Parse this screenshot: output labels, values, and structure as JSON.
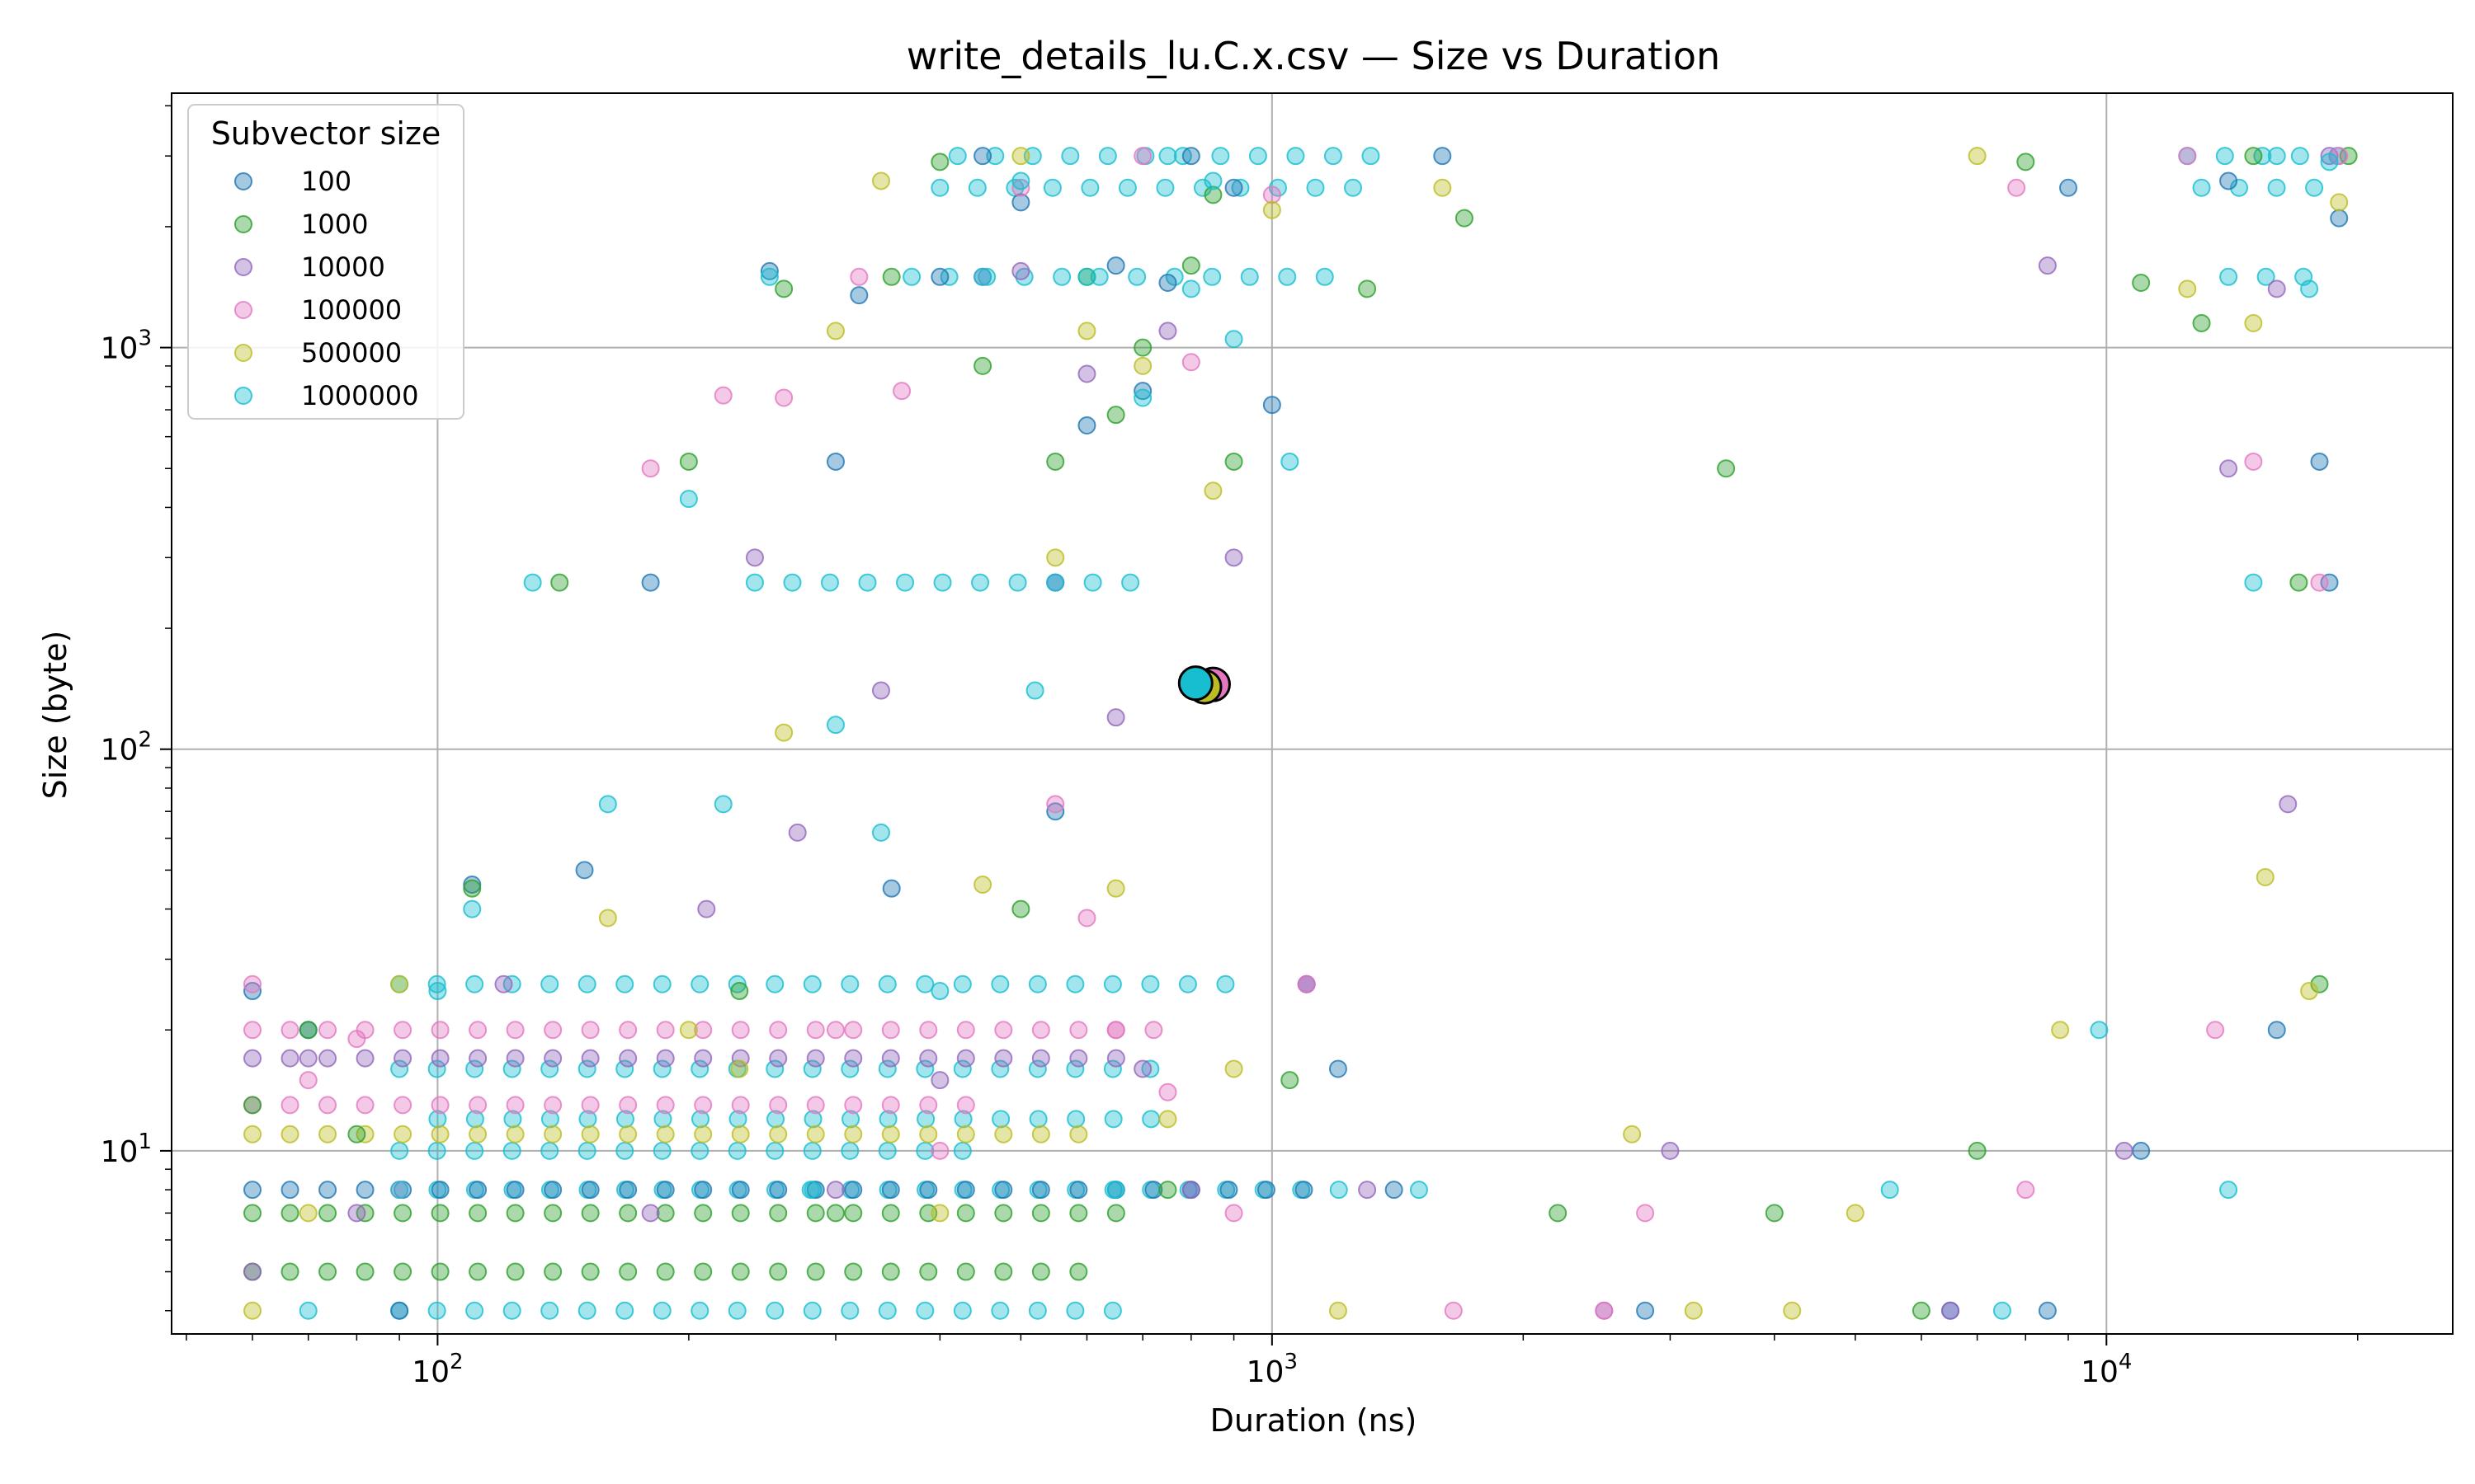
{
  "chart_data": {
    "type": "scatter",
    "title": "write_details_lu.C.x.csv — Size vs Duration",
    "xlabel": "Duration (ns)",
    "ylabel": "Size (byte)",
    "xscale": "log",
    "yscale": "log",
    "xlim": [
      48,
      26000
    ],
    "ylim": [
      3.5,
      4300
    ],
    "x_ticks": [
      {
        "value": 100,
        "base": "10",
        "exp": "2"
      },
      {
        "value": 1000,
        "base": "10",
        "exp": "3"
      },
      {
        "value": 10000,
        "base": "10",
        "exp": "4"
      }
    ],
    "y_ticks": [
      {
        "value": 10,
        "base": "10",
        "exp": "1"
      },
      {
        "value": 100,
        "base": "10",
        "exp": "2"
      },
      {
        "value": 1000,
        "base": "10",
        "exp": "3"
      }
    ],
    "grid": true,
    "legend": {
      "title": "Subvector size",
      "position": "top-left"
    },
    "series": [
      {
        "name": "100",
        "color": "#1f77b4",
        "points": [
          [
            60,
            25
          ],
          [
            70,
            20
          ],
          [
            90,
            4
          ],
          [
            110,
            46
          ],
          [
            150,
            50
          ],
          [
            180,
            260
          ],
          [
            250,
            1550
          ],
          [
            300,
            520
          ],
          [
            320,
            1350
          ],
          [
            350,
            45
          ],
          [
            400,
            1500
          ],
          [
            450,
            3000
          ],
          [
            500,
            2300
          ],
          [
            550,
            70
          ],
          [
            600,
            640
          ],
          [
            650,
            1600
          ],
          [
            700,
            780
          ],
          [
            750,
            1450
          ],
          [
            800,
            3000
          ],
          [
            900,
            2500
          ],
          [
            1000,
            720
          ],
          [
            1100,
            26
          ],
          [
            1200,
            16
          ],
          [
            1400,
            8
          ],
          [
            1600,
            3000
          ],
          [
            2800,
            4
          ],
          [
            6500,
            4
          ],
          [
            8500,
            4
          ],
          [
            9000,
            2500
          ],
          [
            11000,
            10
          ],
          [
            14000,
            2600
          ],
          [
            16000,
            20
          ],
          [
            18000,
            520
          ],
          [
            18500,
            260
          ],
          [
            19000,
            2100
          ]
        ]
      },
      {
        "name": "1000",
        "color": "#2ca02c",
        "points": [
          [
            60,
            13
          ],
          [
            70,
            20
          ],
          [
            80,
            11
          ],
          [
            110,
            45
          ],
          [
            140,
            260
          ],
          [
            200,
            520
          ],
          [
            230,
            25
          ],
          [
            260,
            1400
          ],
          [
            300,
            7
          ],
          [
            350,
            1500
          ],
          [
            400,
            2900
          ],
          [
            450,
            900
          ],
          [
            500,
            40
          ],
          [
            550,
            520
          ],
          [
            600,
            1500
          ],
          [
            650,
            680
          ],
          [
            700,
            1000
          ],
          [
            750,
            8
          ],
          [
            800,
            1600
          ],
          [
            850,
            2400
          ],
          [
            900,
            520
          ],
          [
            1050,
            15
          ],
          [
            1300,
            1400
          ],
          [
            1700,
            2100
          ],
          [
            2200,
            7
          ],
          [
            3500,
            500
          ],
          [
            4000,
            7
          ],
          [
            6000,
            4
          ],
          [
            7000,
            10
          ],
          [
            8000,
            2900
          ],
          [
            11000,
            1450
          ],
          [
            13000,
            1150
          ],
          [
            15000,
            3000
          ],
          [
            17000,
            260
          ],
          [
            18000,
            26
          ],
          [
            19500,
            3000
          ]
        ]
      },
      {
        "name": "10000",
        "color": "#9467bd",
        "points": [
          [
            60,
            5
          ],
          [
            70,
            17
          ],
          [
            80,
            7
          ],
          [
            120,
            26
          ],
          [
            180,
            7
          ],
          [
            210,
            40
          ],
          [
            240,
            300
          ],
          [
            270,
            62
          ],
          [
            300,
            8
          ],
          [
            340,
            140
          ],
          [
            400,
            15
          ],
          [
            450,
            1500
          ],
          [
            500,
            1550
          ],
          [
            550,
            260
          ],
          [
            600,
            860
          ],
          [
            650,
            120
          ],
          [
            700,
            16
          ],
          [
            750,
            1100
          ],
          [
            800,
            8
          ],
          [
            900,
            300
          ],
          [
            1100,
            26
          ],
          [
            1300,
            8
          ],
          [
            2500,
            4
          ],
          [
            3000,
            10
          ],
          [
            6500,
            4
          ],
          [
            8500,
            1600
          ],
          [
            10500,
            10
          ],
          [
            14000,
            500
          ],
          [
            16000,
            1400
          ],
          [
            16500,
            73
          ],
          [
            18500,
            3000
          ]
        ]
      },
      {
        "name": "100000",
        "color": "#e377c2",
        "points": [
          [
            60,
            26
          ],
          [
            70,
            15
          ],
          [
            80,
            19
          ],
          [
            90,
            8
          ],
          [
            180,
            500
          ],
          [
            220,
            760
          ],
          [
            260,
            750
          ],
          [
            300,
            20
          ],
          [
            320,
            1500
          ],
          [
            360,
            780
          ],
          [
            400,
            10
          ],
          [
            500,
            2500
          ],
          [
            550,
            73
          ],
          [
            600,
            38
          ],
          [
            650,
            20
          ],
          [
            700,
            3000
          ],
          [
            750,
            14
          ],
          [
            800,
            920
          ],
          [
            850,
            145
          ],
          [
            900,
            7
          ],
          [
            1000,
            2400
          ],
          [
            1100,
            26
          ],
          [
            1650,
            4
          ],
          [
            2500,
            4
          ],
          [
            2800,
            7
          ],
          [
            7800,
            2500
          ],
          [
            8000,
            8
          ],
          [
            12500,
            3000
          ],
          [
            13500,
            20
          ],
          [
            15000,
            520
          ],
          [
            18000,
            260
          ],
          [
            19000,
            3000
          ]
        ]
      },
      {
        "name": "500000",
        "color": "#bcbd22",
        "points": [
          [
            60,
            4
          ],
          [
            70,
            7
          ],
          [
            90,
            26
          ],
          [
            160,
            38
          ],
          [
            200,
            20
          ],
          [
            230,
            16
          ],
          [
            260,
            110
          ],
          [
            300,
            1100
          ],
          [
            340,
            2600
          ],
          [
            400,
            7
          ],
          [
            450,
            46
          ],
          [
            500,
            3000
          ],
          [
            550,
            300
          ],
          [
            600,
            1100
          ],
          [
            650,
            45
          ],
          [
            700,
            900
          ],
          [
            750,
            12
          ],
          [
            850,
            440
          ],
          [
            900,
            16
          ],
          [
            1000,
            2200
          ],
          [
            1200,
            4
          ],
          [
            1600,
            2500
          ],
          [
            2700,
            11
          ],
          [
            3200,
            4
          ],
          [
            4200,
            4
          ],
          [
            5000,
            7
          ],
          [
            7000,
            3000
          ],
          [
            8800,
            20
          ],
          [
            12500,
            1400
          ],
          [
            15000,
            1150
          ],
          [
            15500,
            48
          ],
          [
            17500,
            25
          ],
          [
            19000,
            2300
          ]
        ]
      },
      {
        "name": "1000000",
        "color": "#17becf",
        "points": [
          [
            70,
            4
          ],
          [
            90,
            8
          ],
          [
            100,
            25
          ],
          [
            110,
            40
          ],
          [
            130,
            260
          ],
          [
            160,
            73
          ],
          [
            200,
            420
          ],
          [
            220,
            73
          ],
          [
            250,
            1500
          ],
          [
            280,
            8
          ],
          [
            300,
            115
          ],
          [
            340,
            62
          ],
          [
            400,
            25
          ],
          [
            450,
            1500
          ],
          [
            500,
            2600
          ],
          [
            520,
            140
          ],
          [
            550,
            260
          ],
          [
            600,
            1500
          ],
          [
            650,
            8
          ],
          [
            700,
            750
          ],
          [
            750,
            3000
          ],
          [
            800,
            1400
          ],
          [
            850,
            2600
          ],
          [
            900,
            1050
          ],
          [
            1050,
            520
          ],
          [
            1500,
            8
          ],
          [
            5500,
            8
          ],
          [
            7500,
            4
          ],
          [
            9800,
            20
          ],
          [
            14000,
            8
          ],
          [
            15000,
            260
          ],
          [
            16000,
            3000
          ],
          [
            17500,
            1400
          ],
          [
            18500,
            2900
          ]
        ]
      }
    ],
    "bands": [
      {
        "series": "1000000",
        "y": 8,
        "x_from": 100,
        "x_to": 1300
      },
      {
        "series": "1000000",
        "y": 4,
        "x_from": 90,
        "x_to": 650
      },
      {
        "series": "1000000",
        "y": 26,
        "x_from": 90,
        "x_to": 900
      },
      {
        "series": "1000000",
        "y": 10,
        "x_from": 90,
        "x_to": 450
      },
      {
        "series": "1000000",
        "y": 12,
        "x_from": 100,
        "x_to": 780
      },
      {
        "series": "1000000",
        "y": 16,
        "x_from": 90,
        "x_to": 750
      },
      {
        "series": "1000000",
        "y": 260,
        "x_from": 240,
        "x_to": 680
      },
      {
        "series": "1000000",
        "y": 3000,
        "x_from": 420,
        "x_to": 1400
      },
      {
        "series": "1000000",
        "y": 2500,
        "x_from": 400,
        "x_to": 1300
      },
      {
        "series": "1000000",
        "y": 1500,
        "x_from": 370,
        "x_to": 1200
      },
      {
        "series": "1000000",
        "y": 3000,
        "x_from": 12500,
        "x_to": 19500
      },
      {
        "series": "1000000",
        "y": 2500,
        "x_from": 13000,
        "x_to": 19000
      },
      {
        "series": "1000000",
        "y": 1500,
        "x_from": 14000,
        "x_to": 18500
      },
      {
        "series": "1000",
        "y": 7,
        "x_from": 60,
        "x_to": 700
      },
      {
        "series": "1000",
        "y": 5,
        "x_from": 60,
        "x_to": 650
      },
      {
        "series": "500000",
        "y": 11,
        "x_from": 60,
        "x_to": 600
      },
      {
        "series": "100000",
        "y": 20,
        "x_from": 60,
        "x_to": 800
      },
      {
        "series": "100000",
        "y": 13,
        "x_from": 60,
        "x_to": 450
      },
      {
        "series": "10000",
        "y": 17,
        "x_from": 60,
        "x_to": 700
      },
      {
        "series": "100",
        "y": 8,
        "x_from": 60,
        "x_to": 1200
      }
    ],
    "highlight": [
      {
        "series": "100000",
        "x": 850,
        "y": 145
      },
      {
        "series": "500000",
        "x": 830,
        "y": 143
      },
      {
        "series": "1000000",
        "x": 810,
        "y": 146
      }
    ]
  }
}
